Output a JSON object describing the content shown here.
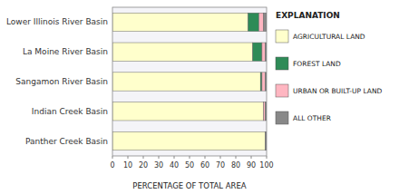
{
  "chart_data": {
    "type": "bar",
    "orientation": "horizontal",
    "stacked": true,
    "xlabel": "PERCENTAGE OF TOTAL AREA",
    "legend_title": "EXPLANATION",
    "legend": "right",
    "grid": false,
    "categories": [
      "Panther Creek Basin",
      "Indian Creek Basin",
      "Sangamon River Basin",
      "La Moine River Basin",
      "Lower Illinois River Basin"
    ],
    "series": [
      {
        "name": "AGRICULTURAL LAND",
        "color": "#FFFFCC",
        "values": [
          99,
          98,
          96,
          91,
          88
        ]
      },
      {
        "name": "FOREST LAND",
        "color": "#2E8B57",
        "values": [
          0,
          0,
          1,
          6,
          7
        ]
      },
      {
        "name": "URBAN OR BUILT-UP LAND",
        "color": "#FFB6C1",
        "values": [
          0,
          1,
          2,
          2,
          3
        ]
      },
      {
        "name": "ALL OTHER",
        "color": "#888888",
        "values": [
          1,
          1,
          1,
          1,
          2
        ]
      }
    ],
    "xlim": [
      0,
      100
    ],
    "xticks": [
      0,
      10,
      20,
      30,
      40,
      50,
      60,
      70,
      80,
      90,
      100
    ]
  }
}
